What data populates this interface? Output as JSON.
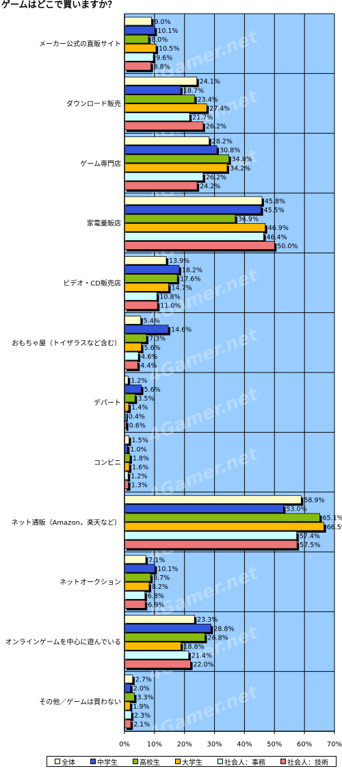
{
  "chart_data": {
    "type": "bar",
    "orientation": "horizontal",
    "title": "ゲームはどこで買いますか？",
    "watermark": "4Gamer.net",
    "categories": [
      "メーカー公式の直販サイト",
      "ダウンロード販売",
      "ゲーム専門店",
      "家電量販店",
      "ビデオ・CD販売店",
      "おもちゃ屋（トイザラスなど含む）",
      "デパート",
      "コンビニ",
      "ネット通販（Amazon，楽天など）",
      "ネットオークション",
      "オンラインゲームを中心に遊んでいる",
      "その他／ゲームは買わない"
    ],
    "series": [
      {
        "name": "全体",
        "color": "#ffffcc",
        "values": [
          9.0,
          24.1,
          28.2,
          45.8,
          13.9,
          5.4,
          1.2,
          1.5,
          58.9,
          7.1,
          23.3,
          2.7
        ]
      },
      {
        "name": "中学生",
        "color": "#3355dd",
        "values": [
          10.1,
          18.7,
          30.8,
          45.5,
          18.2,
          14.6,
          5.6,
          1.0,
          53.0,
          10.1,
          28.8,
          2.0
        ]
      },
      {
        "name": "高校生",
        "color": "#88bb11",
        "values": [
          8.0,
          23.4,
          34.8,
          36.9,
          17.6,
          7.3,
          3.5,
          1.8,
          65.1,
          8.7,
          26.8,
          3.3
        ]
      },
      {
        "name": "大学生",
        "color": "#ffbb00",
        "values": [
          10.5,
          27.4,
          34.2,
          46.9,
          14.7,
          5.6,
          1.4,
          1.6,
          66.5,
          8.2,
          18.8,
          1.9
        ]
      },
      {
        "name": "社会人：事務",
        "color": "#ccffff",
        "values": [
          9.6,
          21.7,
          26.2,
          46.4,
          10.8,
          4.6,
          0.4,
          1.2,
          57.4,
          6.8,
          21.4,
          2.3
        ]
      },
      {
        "name": "社会人：技術",
        "color": "#ee7777",
        "values": [
          8.8,
          26.2,
          24.2,
          50.0,
          11.0,
          4.4,
          0.6,
          1.3,
          57.5,
          6.9,
          22.0,
          2.1
        ]
      }
    ],
    "xlim": [
      0,
      70
    ],
    "xticks": [
      "0%",
      "10%",
      "20%",
      "30%",
      "40%",
      "50%",
      "60%",
      "70%"
    ],
    "value_suffix": "%",
    "grid": true,
    "legend_position": "bottom",
    "plot_background": "#99ccff"
  }
}
